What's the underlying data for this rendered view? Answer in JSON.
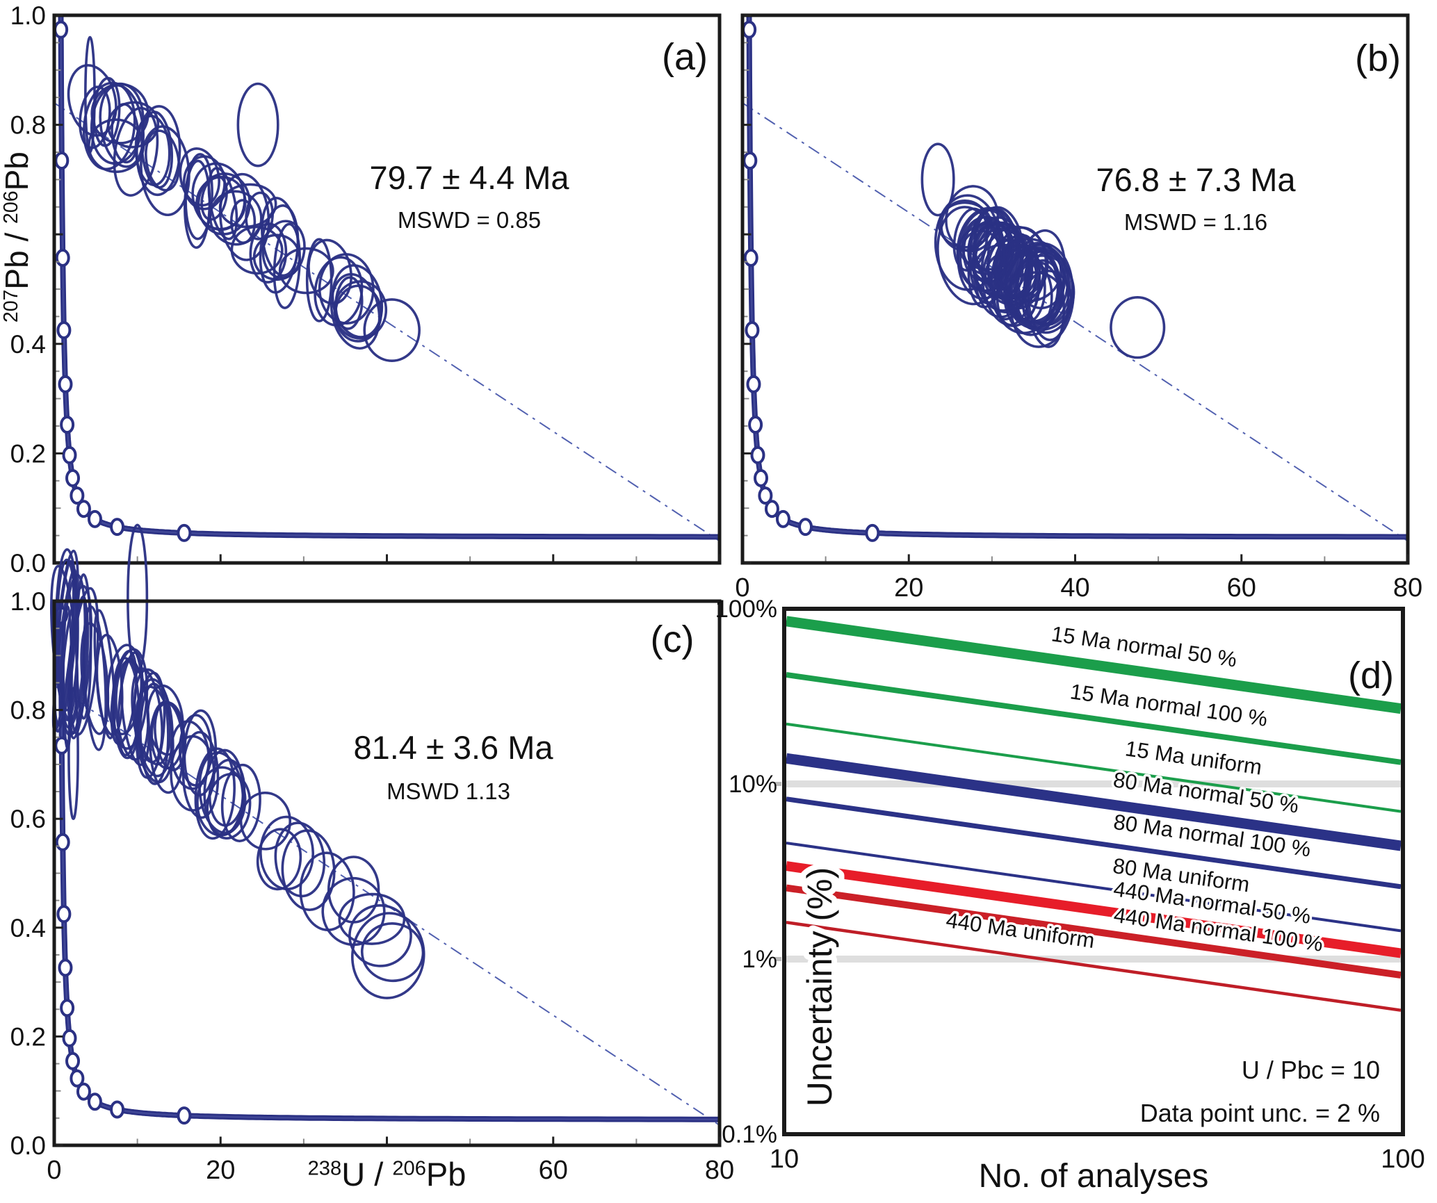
{
  "colors": {
    "navy": "#2b3184",
    "navy_core": "#4a51a0",
    "frame": "#1a1a1a",
    "tick_major": "#222222",
    "tick_minor": "#8a8a8a",
    "grid_band": "#dedede",
    "text": "#111111",
    "green": "#1b9e4b",
    "blue_line": "#2b3287",
    "red_thick": "#e71d29",
    "red_medium": "#cb2027",
    "red_thin": "#bf1e27"
  },
  "chart_data": [
    {
      "panel": "a",
      "type": "scatter",
      "subtype": "tera_wasserburg_concordia",
      "letter": "(a)",
      "age_label": "79.7 ± 4.4 Ma",
      "mswd_label": "MSWD = 0.85",
      "xlim": [
        0,
        80
      ],
      "ylim": [
        0,
        1
      ],
      "x_tick_step_minor": 10,
      "x_tick_step_major": 20,
      "x_tick_labels_shown": false,
      "y_tick_values": [
        0.0,
        0.2,
        0.4,
        0.6,
        0.8,
        1.0
      ],
      "y_tick_labels": [
        "0.0",
        "0.2",
        "0.4",
        "",
        "0.8",
        "1.0"
      ],
      "ylabel_segments": [
        {
          "text": "207",
          "sup": true
        },
        {
          "text": "Pb / ",
          "sup": false
        },
        {
          "text": "206",
          "sup": true
        },
        {
          "text": "Pb",
          "sup": false
        }
      ],
      "concordia_marker_ages_Ma": [
        400,
        800,
        1200,
        1600,
        2000,
        2400,
        2800,
        3200,
        3600,
        4000,
        4400,
        4800,
        5200
      ],
      "discordia_line": {
        "x": [
          0,
          80
        ],
        "y": [
          0.84,
          0.04
        ]
      },
      "ellipse_gen": {
        "seed": 11,
        "count": 46,
        "dist": "power",
        "x0": 4.5,
        "xspan": 33,
        "xpow": 1.15,
        "trend_intercept": 0.885,
        "trend_slope": -0.0113,
        "scatter": 0.048,
        "cy_clamp": [
          0.4,
          0.93
        ],
        "rx0": 1.3,
        "rx1": 2.1,
        "rxcx": 0,
        "ry0": 0.036,
        "ry1": 0.046,
        "ryexp": 0,
        "rydecay": 1,
        "rot_span_deg": 24
      },
      "extra_ellipses": [
        {
          "cx": 4.3,
          "cy": 0.855,
          "rx": 0.55,
          "ry": 0.105,
          "rot": 0
        },
        {
          "cx": 36.8,
          "cy": 0.462,
          "rx": 3.1,
          "ry": 0.052,
          "rot": 0
        },
        {
          "cx": 40.6,
          "cy": 0.425,
          "rx": 3.3,
          "ry": 0.056,
          "rot": 0
        },
        {
          "cx": 24.5,
          "cy": 0.8,
          "rx": 2.4,
          "ry": 0.075,
          "rot": 0
        }
      ]
    },
    {
      "panel": "b",
      "type": "scatter",
      "subtype": "tera_wasserburg_concordia",
      "letter": "(b)",
      "age_label": "76.8 ± 7.3  Ma",
      "mswd_label": "MSWD = 1.16",
      "xlim": [
        0,
        80
      ],
      "ylim": [
        0,
        1
      ],
      "x_tick_step_minor": 10,
      "x_tick_step_major": 20,
      "x_tick_labels_shown": true,
      "x_tick_label_values": [
        0,
        20,
        40,
        60,
        80
      ],
      "x_tick_labels": [
        "0",
        "20",
        "40",
        "60",
        "80"
      ],
      "y_tick_values": [
        0.0,
        0.2,
        0.4,
        0.6,
        0.8,
        1.0
      ],
      "y_tick_labels": [
        "",
        "",
        "",
        "",
        "",
        ""
      ],
      "concordia_marker_ages_Ma": [
        400,
        800,
        1200,
        1600,
        2000,
        2400,
        2800,
        3200,
        3600,
        4000,
        4400,
        4800,
        5200
      ],
      "discordia_line": {
        "x": [
          0,
          80
        ],
        "y": [
          0.84,
          0.04
        ]
      },
      "ellipse_gen": {
        "seed": 7,
        "count": 58,
        "dist": "gauss",
        "cx0": 31.5,
        "cxsd": 7.5,
        "cx_clamp": [
          21,
          50
        ],
        "trend_intercept": 0.95,
        "trend_slope": -0.0128,
        "scatter": 0.05,
        "cy_clamp": [
          0.4,
          0.78
        ],
        "rx0": 1.7,
        "rx1": 2.3,
        "rxcx": 0,
        "ry0": 0.04,
        "ry1": 0.05,
        "ryexp": 0,
        "rydecay": 1,
        "rot_span_deg": 20
      },
      "extra_ellipses": [
        {
          "cx": 47.5,
          "cy": 0.43,
          "rx": 3.2,
          "ry": 0.055,
          "rot": 0
        },
        {
          "cx": 23.5,
          "cy": 0.7,
          "rx": 1.9,
          "ry": 0.065,
          "rot": 0
        }
      ]
    },
    {
      "panel": "c",
      "type": "scatter",
      "subtype": "tera_wasserburg_concordia",
      "letter": "(c)",
      "age_label": "81.4 ± 3.6 Ma",
      "mswd_label": "MSWD 1.13",
      "xlim": [
        0,
        80
      ],
      "ylim": [
        0,
        1
      ],
      "x_tick_step_minor": 10,
      "x_tick_step_major": 20,
      "x_tick_labels_shown": true,
      "x_tick_label_values": [
        0,
        20,
        60,
        80
      ],
      "x_tick_labels": [
        "0",
        "20",
        "60",
        "80"
      ],
      "y_tick_values": [
        0.0,
        0.2,
        0.4,
        0.6,
        0.8,
        1.0
      ],
      "y_tick_labels": [
        "0.0",
        "0.2",
        "0.4",
        "0.6",
        "0.8",
        "1.0"
      ],
      "xlabel_segments": [
        {
          "text": "238",
          "sup": true
        },
        {
          "text": "U / ",
          "sup": false
        },
        {
          "text": "206",
          "sup": true
        },
        {
          "text": "Pb",
          "sup": false
        }
      ],
      "concordia_marker_ages_Ma": [
        400,
        800,
        1200,
        1600,
        2000,
        2400,
        2800,
        3200,
        3600,
        4000,
        4400,
        4800,
        5200
      ],
      "discordia_line": {
        "x": [
          0,
          80
        ],
        "y": [
          0.845,
          0.037
        ]
      },
      "ellipse_gen": {
        "seed": 5,
        "count": 56,
        "dist": "power",
        "x0": 1.2,
        "xspan": 40,
        "xpow": 1.7,
        "trend_intercept": 0.935,
        "trend_slope": -0.0138,
        "scatter": 0.055,
        "cy_clamp": [
          0.34,
          1.03
        ],
        "rx0": 0.5,
        "rx1": 0.9,
        "rxcx": 0.075,
        "ry0": 0.045,
        "ry1": 0.035,
        "ryexp": 0.105,
        "rydecay": 7,
        "rot_span_deg": 14
      },
      "extra_ellipses": [
        {
          "cx": 10.0,
          "cy": 1.005,
          "rx": 1.15,
          "ry": 0.135,
          "rot": 0
        },
        {
          "cx": 1.6,
          "cy": 0.86,
          "rx": 0.5,
          "ry": 0.13,
          "rot": 0
        },
        {
          "cx": 2.3,
          "cy": 0.72,
          "rx": 0.55,
          "ry": 0.12,
          "rot": 0
        },
        {
          "cx": 36.0,
          "cy": 0.47,
          "rx": 3.0,
          "ry": 0.06,
          "rot": 0
        }
      ]
    },
    {
      "panel": "d",
      "type": "line",
      "letter": "(d)",
      "xlabel": "No. of analyses",
      "ylabel": "Uncertainty (%)",
      "x_scale": "log",
      "y_scale": "log",
      "xlim": [
        10,
        100
      ],
      "ylim_pct": [
        0.1,
        100
      ],
      "x_tick_values": [
        10,
        100
      ],
      "x_tick_labels": [
        "10",
        "100"
      ],
      "y_tick_values_pct": [
        100,
        10,
        1,
        0.1
      ],
      "y_tick_labels": [
        "100%",
        "10%",
        "1%",
        "0.1%"
      ],
      "gridline_bands_pct": [
        10,
        1
      ],
      "slope_decades_per_decade": -0.5,
      "annotation_1": "U / Pbc = 10",
      "annotation_2": "Data point unc. = 2 %",
      "series": [
        {
          "label": "15 Ma normal 50 %",
          "color_key": "green",
          "width": 15,
          "uncertainty_pct_at_10": 85.0,
          "uncertainty_pct_at_100": 26.9,
          "label_frac": 0.58,
          "label_dy": -26
        },
        {
          "label": "15 Ma normal 100 %",
          "color_key": "green",
          "width": 8,
          "uncertainty_pct_at_10": 42.0,
          "uncertainty_pct_at_100": 13.3,
          "label_frac": 0.62,
          "label_dy": -24
        },
        {
          "label": "15 Ma uniform",
          "color_key": "green",
          "width": 4,
          "uncertainty_pct_at_10": 22.0,
          "uncertainty_pct_at_100": 6.96,
          "label_frac": 0.66,
          "label_dy": -24
        },
        {
          "label": "80 Ma normal 50 %",
          "color_key": "blue_line",
          "width": 15,
          "uncertainty_pct_at_10": 14.0,
          "uncertainty_pct_at_100": 4.43,
          "label_frac": 0.68,
          "label_dy": -26
        },
        {
          "label": "80 Ma normal 100 %",
          "color_key": "blue_line",
          "width": 7,
          "uncertainty_pct_at_10": 8.2,
          "uncertainty_pct_at_100": 2.59,
          "label_frac": 0.69,
          "label_dy": -24
        },
        {
          "label": "80 Ma uniform",
          "color_key": "blue_line",
          "width": 4,
          "uncertainty_pct_at_10": 4.6,
          "uncertainty_pct_at_100": 1.45,
          "label_frac": 0.64,
          "label_dy": -24
        },
        {
          "label": "440 Ma normal 50 %",
          "color_key": "red_thick",
          "width": 14,
          "uncertainty_pct_at_10": 3.4,
          "uncertainty_pct_at_100": 1.08,
          "label_frac": 0.69,
          "label_dy": -24
        },
        {
          "label": "440 Ma normal 100 %",
          "color_key": "red_medium",
          "width": 10,
          "uncertainty_pct_at_10": 2.55,
          "uncertainty_pct_at_100": 0.81,
          "label_frac": 0.7,
          "label_dy": -18
        },
        {
          "label": "440 Ma uniform",
          "color_key": "red_thin",
          "width": 4.5,
          "uncertainty_pct_at_10": 1.62,
          "uncertainty_pct_at_100": 0.51,
          "label_frac": 0.38,
          "label_dy": -26
        }
      ],
      "physics": {
        "lambda238_per_Ma": 0.000155125,
        "lambda235_per_Ma": 0.00098485,
        "u_ratio": 137.88
      }
    }
  ]
}
